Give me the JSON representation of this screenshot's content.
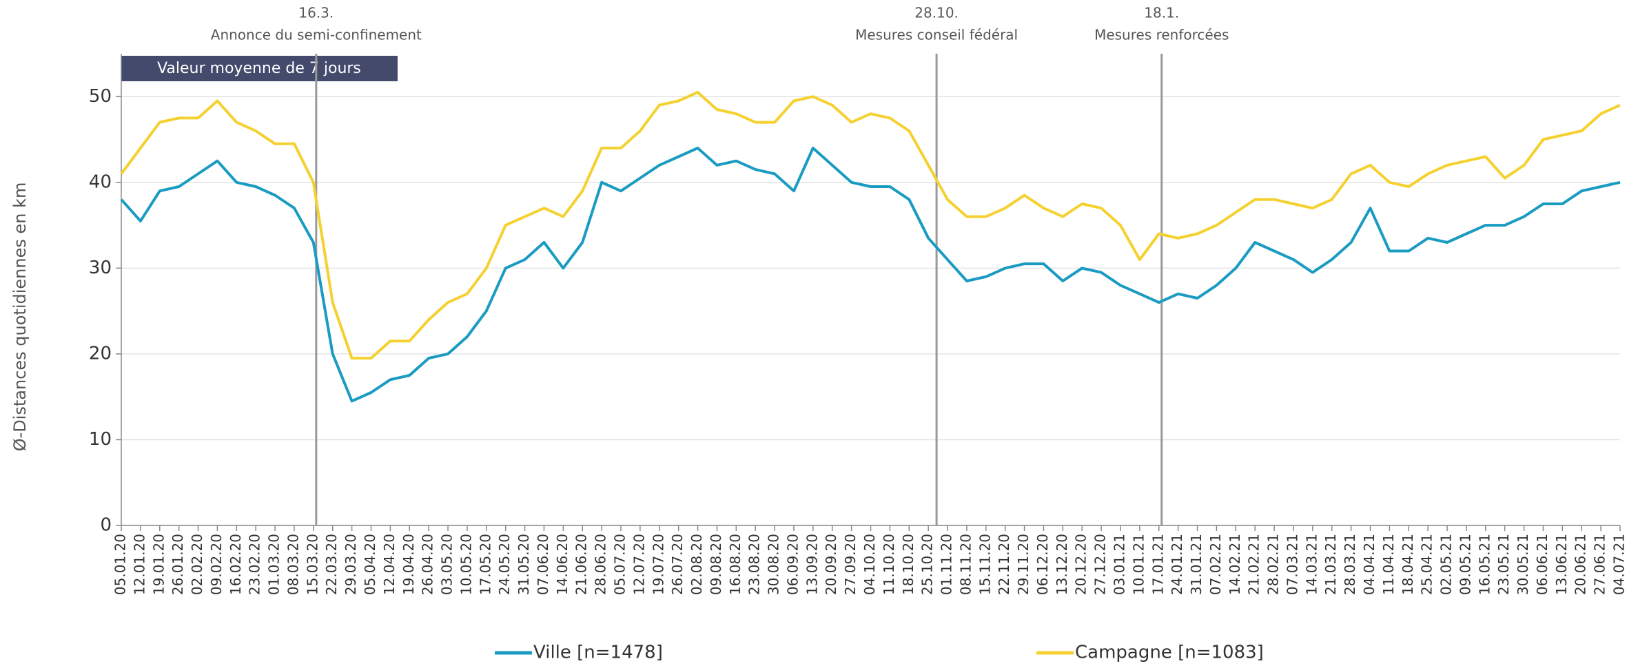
{
  "chart_data": {
    "type": "line",
    "subtitle": "Valeur moyenne de 7 jours",
    "ylabel": "Ø-Distances quotidiennes en km",
    "categories": [
      "05.01.20",
      "12.01.20",
      "19.01.20",
      "26.01.20",
      "02.02.20",
      "09.02.20",
      "16.02.20",
      "23.02.20",
      "01.03.20",
      "08.03.20",
      "15.03.20",
      "22.03.20",
      "29.03.20",
      "05.04.20",
      "12.04.20",
      "19.04.20",
      "26.04.20",
      "03.05.20",
      "10.05.20",
      "17.05.20",
      "24.05.20",
      "31.05.20",
      "07.06.20",
      "14.06.20",
      "21.06.20",
      "28.06.20",
      "05.07.20",
      "12.07.20",
      "19.07.20",
      "26.07.20",
      "02.08.20",
      "09.08.20",
      "16.08.20",
      "23.08.20",
      "30.08.20",
      "06.09.20",
      "13.09.20",
      "20.09.20",
      "27.09.20",
      "04.10.20",
      "11.10.20",
      "18.10.20",
      "25.10.20",
      "01.11.20",
      "08.11.20",
      "15.11.20",
      "22.11.20",
      "29.11.20",
      "06.12.20",
      "13.12.20",
      "20.12.20",
      "27.12.20",
      "03.01.21",
      "10.01.21",
      "17.01.21",
      "24.01.21",
      "31.01.21",
      "07.02.21",
      "14.02.21",
      "21.02.21",
      "28.02.21",
      "07.03.21",
      "14.03.21",
      "21.03.21",
      "28.03.21",
      "04.04.21",
      "11.04.21",
      "18.04.21",
      "25.04.21",
      "02.05.21",
      "09.05.21",
      "16.05.21",
      "23.05.21",
      "30.05.21",
      "06.06.21",
      "13.06.21",
      "20.06.21",
      "27.06.21",
      "04.07.21"
    ],
    "series": [
      {
        "name": "Ville [n=1478]",
        "color": "#1a9bc2",
        "values": [
          38,
          35.5,
          39,
          39.5,
          41,
          42.5,
          40,
          39.5,
          38.5,
          37,
          33,
          20,
          14.5,
          15.5,
          17,
          17.5,
          19.5,
          20,
          22,
          25,
          30,
          31,
          33,
          30,
          33,
          40,
          39,
          40.5,
          42,
          43,
          44,
          42,
          42.5,
          41.5,
          41,
          39,
          44,
          42,
          40,
          39.5,
          39.5,
          38,
          33.5,
          31,
          28.5,
          29,
          30,
          30.5,
          30.5,
          28.5,
          30,
          29.5,
          28,
          27,
          26,
          27,
          26.5,
          28,
          30,
          33,
          32,
          31,
          29.5,
          31,
          33,
          37,
          32,
          32,
          33.5,
          33,
          34,
          35,
          35,
          36,
          37.5,
          37.5,
          39,
          39.5,
          40
        ]
      },
      {
        "name": "Campagne [n=1083]",
        "color": "#f5d130",
        "values": [
          41,
          44,
          47,
          47.5,
          47.5,
          49.5,
          47,
          46,
          44.5,
          44.5,
          40,
          26,
          19.5,
          19.5,
          21.5,
          21.5,
          24,
          26,
          27,
          30,
          35,
          36,
          37,
          36,
          39,
          44,
          44,
          46,
          49,
          49.5,
          50.5,
          48.5,
          48,
          47,
          47,
          49.5,
          50,
          49,
          47,
          48,
          47.5,
          46,
          42,
          38,
          36,
          36,
          37,
          38.5,
          37,
          36,
          37.5,
          37,
          35,
          31,
          34,
          33.5,
          34,
          35,
          36.5,
          38,
          38,
          37.5,
          37,
          38,
          41,
          42,
          40,
          39.5,
          41,
          42,
          42.5,
          43,
          40.5,
          42,
          45,
          45.5,
          46,
          48,
          49
        ]
      }
    ],
    "annotations": [
      {
        "date": "16.3.",
        "text": "Annonce du semi-confinement"
      },
      {
        "date": "28.10.",
        "text": "Mesures conseil fédéral"
      },
      {
        "date": "18.1.",
        "text": "Mesures renforcées"
      }
    ],
    "ylim": [
      0,
      55
    ],
    "yticks": [
      0,
      10,
      20,
      30,
      40,
      50
    ],
    "grid": true
  }
}
